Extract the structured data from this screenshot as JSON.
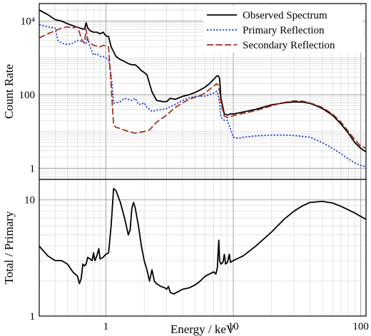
{
  "chart_data": [
    {
      "type": "line",
      "panel": "top",
      "xlabel": "",
      "ylabel": "Count Rate",
      "x_scale": "log",
      "y_scale": "log",
      "xlim": [
        0.3,
        110
      ],
      "ylim": [
        0.5,
        30000
      ],
      "x_ticks": [
        1,
        10,
        100
      ],
      "x_tick_labels": [
        "",
        "",
        ""
      ],
      "y_ticks": [
        1,
        100,
        10000
      ],
      "y_tick_labels": [
        "1",
        "100",
        "10⁴"
      ],
      "grid": true,
      "legend_position": "top-right",
      "series": [
        {
          "name": "Observed Spectrum",
          "color": "#000000",
          "style": "solid",
          "points": [
            [
              0.3,
              20000
            ],
            [
              0.35,
              15000
            ],
            [
              0.4,
              11000
            ],
            [
              0.45,
              10000
            ],
            [
              0.5,
              8500
            ],
            [
              0.55,
              7500
            ],
            [
              0.6,
              6800
            ],
            [
              0.65,
              6200
            ],
            [
              0.68,
              6000
            ],
            [
              0.7,
              9000
            ],
            [
              0.72,
              6500
            ],
            [
              0.75,
              5500
            ],
            [
              0.8,
              5000
            ],
            [
              0.85,
              5000
            ],
            [
              0.9,
              4500
            ],
            [
              0.95,
              5000
            ],
            [
              1.0,
              4000
            ],
            [
              1.05,
              3800
            ],
            [
              1.1,
              2000
            ],
            [
              1.2,
              1100
            ],
            [
              1.3,
              900
            ],
            [
              1.4,
              800
            ],
            [
              1.5,
              700
            ],
            [
              1.6,
              650
            ],
            [
              1.7,
              650
            ],
            [
              1.8,
              550
            ],
            [
              1.9,
              450
            ],
            [
              2.0,
              400
            ],
            [
              2.1,
              350
            ],
            [
              2.2,
              200
            ],
            [
              2.3,
              120
            ],
            [
              2.5,
              70
            ],
            [
              2.8,
              65
            ],
            [
              3.0,
              65
            ],
            [
              3.2,
              80
            ],
            [
              3.5,
              75
            ],
            [
              4.0,
              90
            ],
            [
              4.5,
              100
            ],
            [
              5.0,
              115
            ],
            [
              5.5,
              135
            ],
            [
              6.0,
              160
            ],
            [
              6.5,
              200
            ],
            [
              7.0,
              260
            ],
            [
              7.4,
              320
            ],
            [
              7.6,
              330
            ],
            [
              7.8,
              280
            ],
            [
              8.0,
              80
            ],
            [
              8.5,
              30
            ],
            [
              9.0,
              28
            ],
            [
              9.5,
              30
            ],
            [
              10,
              30
            ],
            [
              11,
              32
            ],
            [
              12,
              34
            ],
            [
              13,
              36
            ],
            [
              15,
              40
            ],
            [
              18,
              48
            ],
            [
              20,
              53
            ],
            [
              25,
              60
            ],
            [
              30,
              64
            ],
            [
              35,
              63
            ],
            [
              40,
              58
            ],
            [
              45,
              50
            ],
            [
              50,
              42
            ],
            [
              60,
              28
            ],
            [
              70,
              16
            ],
            [
              80,
              9
            ],
            [
              90,
              5
            ],
            [
              100,
              3.5
            ],
            [
              110,
              2.8
            ]
          ]
        },
        {
          "name": "Primary Reflection",
          "color": "#1a3cd6",
          "style": "dotted",
          "points": [
            [
              0.3,
              8000
            ],
            [
              0.35,
              7000
            ],
            [
              0.4,
              6500
            ],
            [
              0.42,
              3000
            ],
            [
              0.45,
              2500
            ],
            [
              0.5,
              2300
            ],
            [
              0.55,
              2500
            ],
            [
              0.6,
              3000
            ],
            [
              0.65,
              2800
            ],
            [
              0.7,
              2500
            ],
            [
              0.72,
              3500
            ],
            [
              0.75,
              2000
            ],
            [
              0.8,
              1200
            ],
            [
              0.85,
              1300
            ],
            [
              0.9,
              1100
            ],
            [
              0.95,
              1100
            ],
            [
              1.0,
              1000
            ],
            [
              1.05,
              900
            ],
            [
              1.1,
              350
            ],
            [
              1.15,
              60
            ],
            [
              1.2,
              60
            ],
            [
              1.3,
              65
            ],
            [
              1.4,
              80
            ],
            [
              1.5,
              75
            ],
            [
              1.6,
              70
            ],
            [
              1.7,
              80
            ],
            [
              1.8,
              55
            ],
            [
              1.9,
              55
            ],
            [
              2.0,
              60
            ],
            [
              2.1,
              45
            ],
            [
              2.2,
              40
            ],
            [
              2.3,
              35
            ],
            [
              2.5,
              38
            ],
            [
              2.8,
              40
            ],
            [
              3.0,
              42
            ],
            [
              3.5,
              55
            ],
            [
              4.0,
              70
            ],
            [
              4.5,
              82
            ],
            [
              5.0,
              90
            ],
            [
              5.5,
              90
            ],
            [
              6.0,
              92
            ],
            [
              6.5,
              100
            ],
            [
              7.0,
              110
            ],
            [
              7.4,
              125
            ],
            [
              7.6,
              100
            ],
            [
              7.8,
              60
            ],
            [
              8.0,
              25
            ],
            [
              8.5,
              20
            ],
            [
              9.0,
              20
            ],
            [
              10,
              7
            ],
            [
              11,
              6.5
            ],
            [
              12,
              7
            ],
            [
              15,
              7.6
            ],
            [
              20,
              8
            ],
            [
              25,
              8
            ],
            [
              30,
              7.8
            ],
            [
              40,
              7
            ],
            [
              50,
              5
            ],
            [
              60,
              3.5
            ],
            [
              70,
              2.5
            ],
            [
              80,
              1.8
            ],
            [
              90,
              1.4
            ],
            [
              100,
              1.2
            ],
            [
              110,
              1.1
            ]
          ]
        },
        {
          "name": "Secondary Reflection",
          "color": "#a52a1a",
          "style": "dashed",
          "points": [
            [
              0.3,
              3500
            ],
            [
              0.35,
              4500
            ],
            [
              0.4,
              5500
            ],
            [
              0.45,
              6500
            ],
            [
              0.5,
              7000
            ],
            [
              0.55,
              6500
            ],
            [
              0.6,
              7000
            ],
            [
              0.65,
              3000
            ],
            [
              0.68,
              2500
            ],
            [
              0.7,
              6000
            ],
            [
              0.72,
              3000
            ],
            [
              0.75,
              2600
            ],
            [
              0.8,
              2200
            ],
            [
              0.85,
              2100
            ],
            [
              0.9,
              2000
            ],
            [
              0.95,
              2200
            ],
            [
              1.0,
              2100
            ],
            [
              1.05,
              2000
            ],
            [
              1.1,
              180
            ],
            [
              1.15,
              15
            ],
            [
              1.2,
              13
            ],
            [
              1.3,
              12
            ],
            [
              1.5,
              10
            ],
            [
              1.7,
              9
            ],
            [
              2.0,
              10
            ],
            [
              2.2,
              11
            ],
            [
              2.5,
              18
            ],
            [
              3.0,
              28
            ],
            [
              3.5,
              45
            ],
            [
              4.0,
              60
            ],
            [
              4.5,
              75
            ],
            [
              5.0,
              85
            ],
            [
              5.5,
              95
            ],
            [
              6.0,
              110
            ],
            [
              6.5,
              140
            ],
            [
              7.0,
              170
            ],
            [
              7.4,
              200
            ],
            [
              7.6,
              180
            ],
            [
              7.8,
              120
            ],
            [
              8.0,
              60
            ],
            [
              8.5,
              26
            ],
            [
              9.0,
              24
            ],
            [
              10,
              27
            ],
            [
              11,
              29
            ],
            [
              12,
              31
            ],
            [
              15,
              37
            ],
            [
              20,
              50
            ],
            [
              25,
              62
            ],
            [
              30,
              68
            ],
            [
              35,
              67
            ],
            [
              40,
              60
            ],
            [
              45,
              52
            ],
            [
              50,
              45
            ],
            [
              60,
              30
            ],
            [
              70,
              18
            ],
            [
              80,
              10
            ],
            [
              90,
              6
            ],
            [
              100,
              4
            ],
            [
              110,
              3.5
            ]
          ]
        }
      ]
    },
    {
      "type": "line",
      "panel": "bottom",
      "xlabel": "Energy / keV",
      "ylabel": "Total / Primary",
      "x_scale": "log",
      "y_scale": "log",
      "xlim": [
        0.3,
        110
      ],
      "ylim": [
        1,
        15
      ],
      "x_ticks": [
        1,
        10,
        100
      ],
      "x_tick_labels": [
        "1",
        "10",
        "100"
      ],
      "y_ticks": [
        1,
        10
      ],
      "y_tick_labels": [
        "1",
        "10"
      ],
      "grid": true,
      "series": [
        {
          "name": "",
          "color": "#000000",
          "style": "solid",
          "points": [
            [
              0.3,
              4.0
            ],
            [
              0.35,
              3.3
            ],
            [
              0.4,
              3.0
            ],
            [
              0.45,
              3.0
            ],
            [
              0.5,
              2.8
            ],
            [
              0.55,
              2.4
            ],
            [
              0.6,
              2.2
            ],
            [
              0.62,
              1.9
            ],
            [
              0.64,
              2.1
            ],
            [
              0.66,
              2.8
            ],
            [
              0.68,
              2.7
            ],
            [
              0.7,
              2.8
            ],
            [
              0.72,
              3.2
            ],
            [
              0.75,
              3.1
            ],
            [
              0.78,
              3.0
            ],
            [
              0.8,
              3.5
            ],
            [
              0.82,
              3.0
            ],
            [
              0.85,
              3.3
            ],
            [
              0.88,
              3.8
            ],
            [
              0.9,
              3.1
            ],
            [
              0.95,
              3.2
            ],
            [
              1.0,
              3.4
            ],
            [
              1.05,
              3.5
            ],
            [
              1.1,
              6.0
            ],
            [
              1.15,
              12.5
            ],
            [
              1.2,
              12.0
            ],
            [
              1.3,
              9.5
            ],
            [
              1.4,
              7.0
            ],
            [
              1.5,
              5.0
            ],
            [
              1.55,
              5.5
            ],
            [
              1.6,
              8.5
            ],
            [
              1.65,
              9.5
            ],
            [
              1.7,
              8.5
            ],
            [
              1.8,
              6.0
            ],
            [
              1.9,
              4.0
            ],
            [
              2.0,
              3.0
            ],
            [
              2.1,
              2.5
            ],
            [
              2.2,
              2.0
            ],
            [
              2.3,
              2.5
            ],
            [
              2.4,
              2.0
            ],
            [
              2.5,
              1.9
            ],
            [
              2.7,
              1.8
            ],
            [
              2.9,
              1.75
            ],
            [
              3.0,
              1.7
            ],
            [
              3.1,
              1.8
            ],
            [
              3.2,
              1.6
            ],
            [
              3.4,
              1.55
            ],
            [
              3.6,
              1.6
            ],
            [
              4.0,
              1.7
            ],
            [
              4.5,
              1.75
            ],
            [
              5.0,
              1.85
            ],
            [
              5.5,
              2.0
            ],
            [
              6.0,
              2.2
            ],
            [
              6.5,
              2.3
            ],
            [
              7.0,
              2.4
            ],
            [
              7.3,
              2.3
            ],
            [
              7.5,
              2.6
            ],
            [
              7.6,
              3.5
            ],
            [
              7.7,
              4.5
            ],
            [
              7.8,
              3.0
            ],
            [
              8.0,
              2.8
            ],
            [
              8.3,
              2.9
            ],
            [
              8.5,
              3.4
            ],
            [
              8.7,
              2.8
            ],
            [
              9.0,
              2.9
            ],
            [
              9.3,
              3.4
            ],
            [
              9.5,
              2.9
            ],
            [
              10,
              3.0
            ],
            [
              12,
              3.3
            ],
            [
              15,
              4.0
            ],
            [
              20,
              5.3
            ],
            [
              25,
              6.8
            ],
            [
              30,
              8.0
            ],
            [
              35,
              8.9
            ],
            [
              40,
              9.5
            ],
            [
              50,
              9.7
            ],
            [
              60,
              9.4
            ],
            [
              70,
              8.8
            ],
            [
              80,
              8.2
            ],
            [
              90,
              7.7
            ],
            [
              100,
              7.2
            ],
            [
              110,
              6.8
            ]
          ]
        }
      ]
    }
  ]
}
